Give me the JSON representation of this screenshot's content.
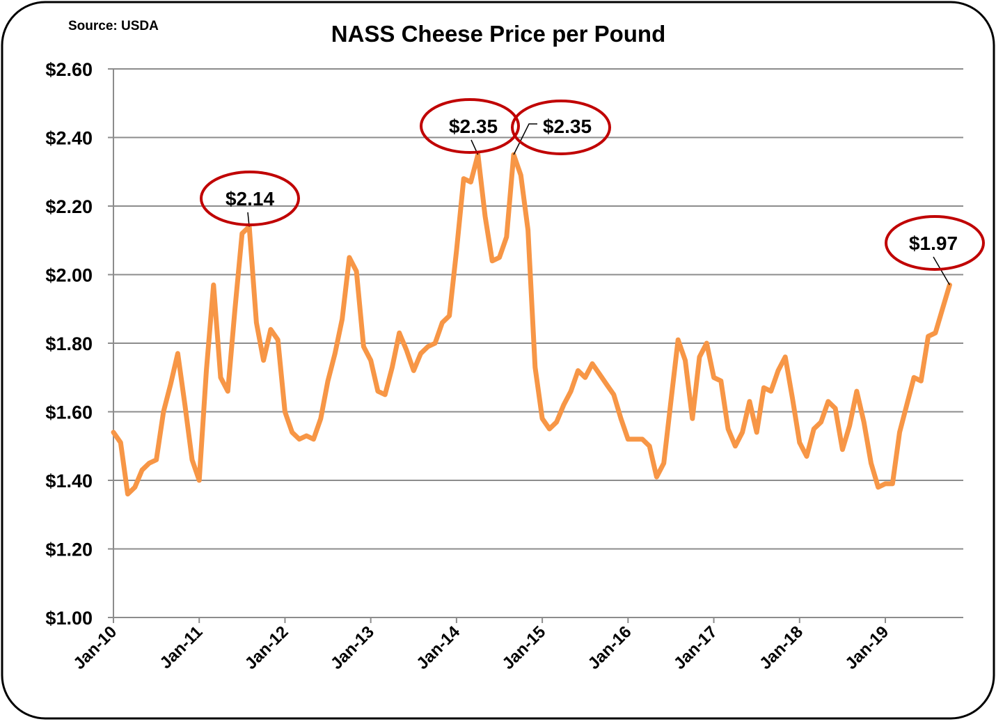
{
  "chart_data": {
    "type": "line",
    "title": "NASS Cheese Price per Pound",
    "source_note": "Source: USDA",
    "xlabel": "",
    "ylabel": "",
    "ylim": [
      1.0,
      2.6
    ],
    "y_ticks": [
      "$1.00",
      "$1.20",
      "$1.40",
      "$1.60",
      "$1.80",
      "$2.00",
      "$2.20",
      "$2.40",
      "$2.60"
    ],
    "x_ticks": [
      "Jan-10",
      "Jan-11",
      "Jan-12",
      "Jan-13",
      "Jan-14",
      "Jan-15",
      "Jan-16",
      "Jan-17",
      "Jan-18",
      "Jan-19"
    ],
    "grid": true,
    "legend": "none",
    "x_start": "Jan-10",
    "x_end": "Oct-19",
    "x_frequency": "monthly",
    "line_color": "#F79646",
    "annotation_color": "#C00000",
    "series": [
      {
        "values": [
          1.54,
          1.51,
          1.36,
          1.38,
          1.43,
          1.45,
          1.46,
          1.6,
          1.68,
          1.77,
          1.62,
          1.46,
          1.4,
          1.72,
          1.97,
          1.7,
          1.66,
          1.9,
          2.12,
          2.14,
          1.86,
          1.75,
          1.84,
          1.81,
          1.6,
          1.54,
          1.52,
          1.53,
          1.52,
          1.58,
          1.69,
          1.77,
          1.87,
          2.05,
          2.01,
          1.79,
          1.75,
          1.66,
          1.65,
          1.73,
          1.83,
          1.78,
          1.72,
          1.77,
          1.79,
          1.8,
          1.86,
          1.88,
          2.07,
          2.28,
          2.27,
          2.35,
          2.17,
          2.04,
          2.05,
          2.11,
          2.35,
          2.29,
          2.13,
          1.73,
          1.58,
          1.55,
          1.57,
          1.62,
          1.66,
          1.72,
          1.7,
          1.74,
          1.71,
          1.68,
          1.65,
          1.58,
          1.52,
          1.52,
          1.52,
          1.5,
          1.41,
          1.45,
          1.63,
          1.81,
          1.75,
          1.58,
          1.76,
          1.8,
          1.7,
          1.69,
          1.55,
          1.5,
          1.54,
          1.63,
          1.54,
          1.67,
          1.66,
          1.72,
          1.76,
          1.64,
          1.51,
          1.47,
          1.55,
          1.57,
          1.63,
          1.61,
          1.49,
          1.56,
          1.66,
          1.57,
          1.45,
          1.38,
          1.39,
          1.39,
          1.54,
          1.62,
          1.7,
          1.69,
          1.82,
          1.83,
          1.9,
          1.97
        ]
      }
    ],
    "annotations": [
      {
        "index": 19,
        "label": "$2.14"
      },
      {
        "index": 51,
        "label": "$2.35"
      },
      {
        "index": 56,
        "label": "$2.35"
      },
      {
        "index": 117,
        "label": "$1.97"
      }
    ]
  }
}
